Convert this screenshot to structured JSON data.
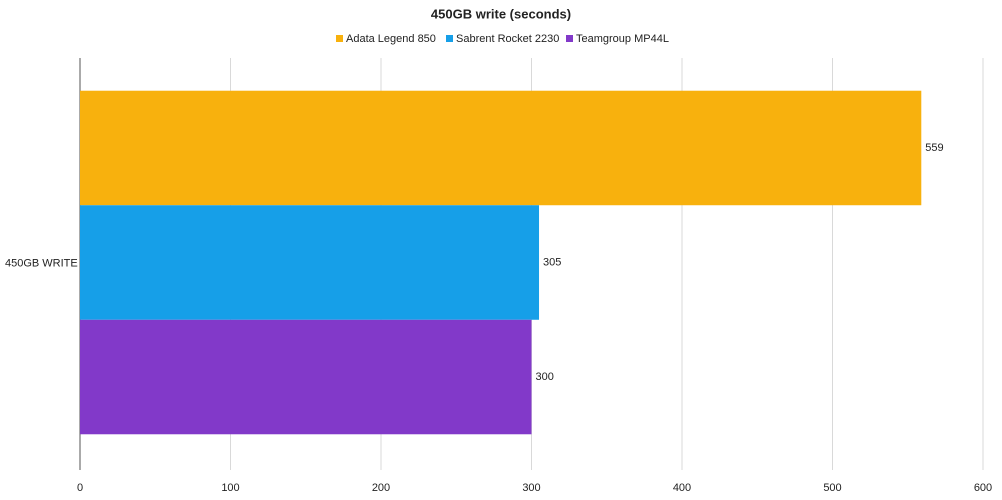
{
  "chart_data": {
    "type": "hbar",
    "title": "450GB write (seconds)",
    "categories": [
      "450GB WRITE"
    ],
    "series": [
      {
        "name": "Adata Legend 850",
        "color": "#f8b10d",
        "values": [
          559
        ]
      },
      {
        "name": "Sabrent Rocket 2230",
        "color": "#169fe8",
        "values": [
          305
        ]
      },
      {
        "name": "Teamgroup MP44L",
        "color": "#8239c9",
        "values": [
          300
        ]
      }
    ],
    "xlim": [
      0,
      600
    ],
    "xticks": [
      0,
      100,
      200,
      300,
      400,
      500,
      600
    ],
    "grid": true,
    "legend": "top",
    "data_labels": true
  }
}
